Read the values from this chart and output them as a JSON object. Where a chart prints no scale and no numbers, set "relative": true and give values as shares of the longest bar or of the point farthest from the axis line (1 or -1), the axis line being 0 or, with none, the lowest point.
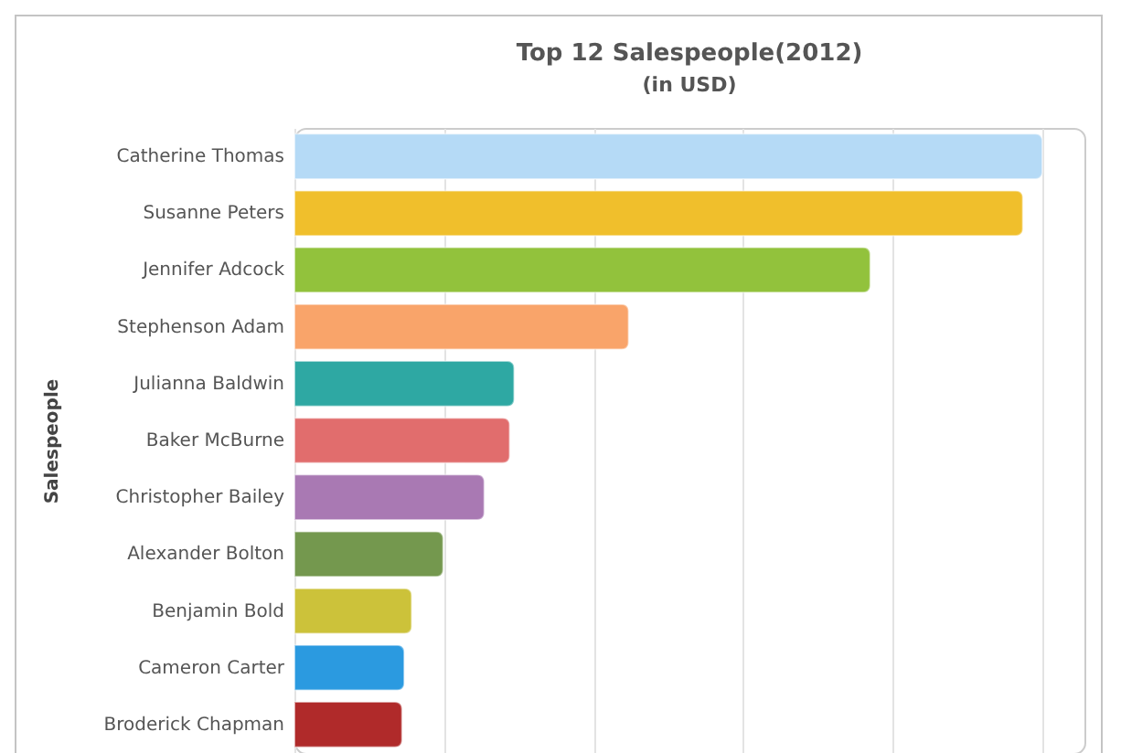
{
  "chart_data": {
    "type": "bar",
    "orientation": "horizontal",
    "relative": true,
    "title": "Top 12 Salespeople(2012)",
    "subtitle": "(in USD)",
    "ylabel": "Salespeople",
    "categories": [
      "Catherine Thomas",
      "Susanne Peters",
      "Jennifer Adcock",
      "Stephenson Adam",
      "Julianna Baldwin",
      "Baker McBurne",
      "Christopher Bailey",
      "Alexander Bolton",
      "Benjamin Bold",
      "Cameron Carter",
      "Broderick Chapman"
    ],
    "values": [
      1,
      0.974,
      0.77,
      0.447,
      0.294,
      0.288,
      0.254,
      0.199,
      0.157,
      0.147,
      0.144
    ],
    "colors": [
      "#b5daf6",
      "#f0bf2c",
      "#92c23c",
      "#f9a46a",
      "#2ea8a3",
      "#e16d6d",
      "#a979b3",
      "#74984e",
      "#ccc23a",
      "#2b9ae0",
      "#b02a2a"
    ],
    "grid": "x"
  }
}
